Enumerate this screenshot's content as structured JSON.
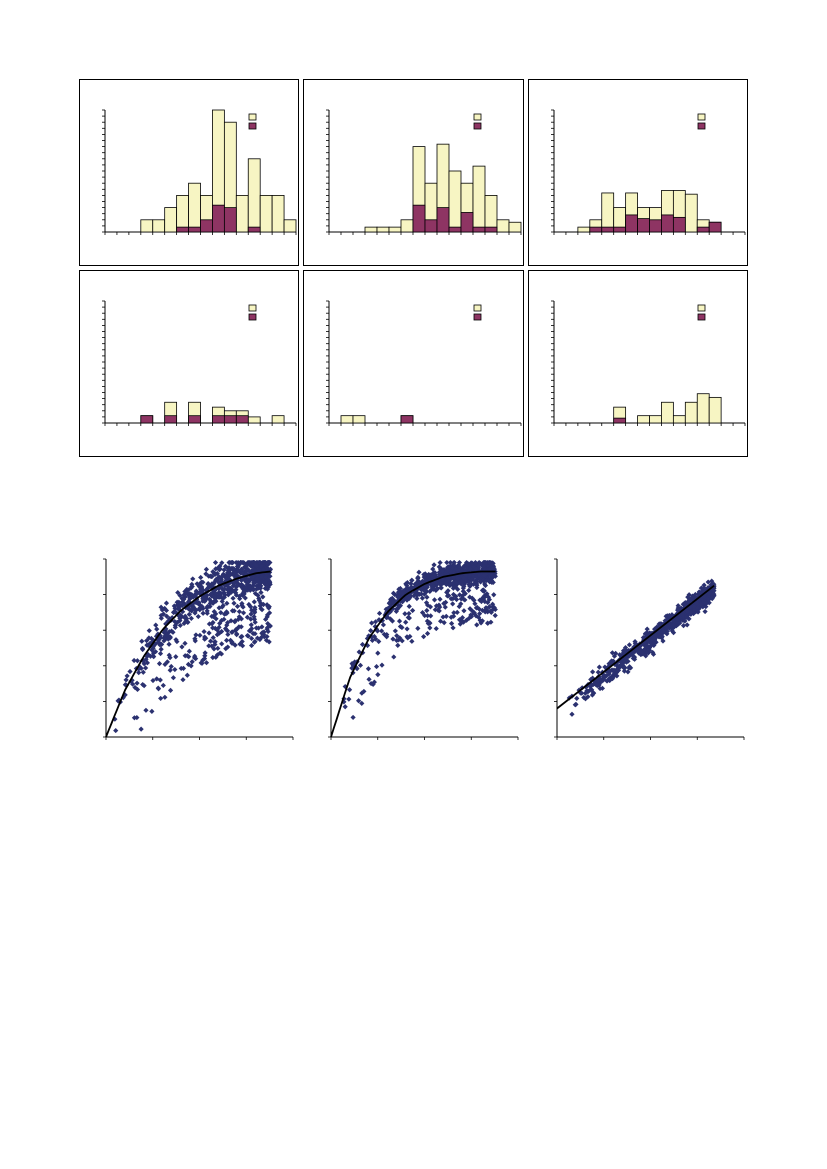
{
  "colors": {
    "light_fill": "#f7f5c3",
    "dark_fill": "#8e3463",
    "scatter_point": "#2b3170",
    "curve": "#000000"
  },
  "chart_data": [
    {
      "type": "bar",
      "stacked": false,
      "n_bins": 16,
      "ylim": [
        0,
        10
      ],
      "legend_placement": "top-right",
      "series": [
        {
          "values": [
            0,
            0,
            0,
            1,
            1,
            2,
            3,
            4,
            3,
            10,
            9,
            3,
            6,
            3,
            3,
            1
          ]
        },
        {
          "values": [
            0,
            0,
            0,
            0,
            0,
            0,
            0.4,
            0.4,
            1,
            2.2,
            2,
            0,
            0.4,
            0,
            0,
            0
          ]
        }
      ]
    },
    {
      "type": "bar",
      "stacked": false,
      "n_bins": 16,
      "ylim": [
        0,
        10
      ],
      "legend_placement": "top-right",
      "series": [
        {
          "values": [
            0,
            0,
            0,
            0.4,
            0.4,
            0.4,
            1,
            7,
            4,
            7.2,
            5,
            4,
            5.4,
            3,
            1,
            0.8
          ]
        },
        {
          "values": [
            0,
            0,
            0,
            0,
            0,
            0,
            0,
            2.2,
            1,
            2,
            0.4,
            1.6,
            0.4,
            0.4,
            0,
            0
          ]
        }
      ]
    },
    {
      "type": "bar",
      "stacked": false,
      "n_bins": 16,
      "ylim": [
        0,
        10
      ],
      "legend_placement": "top-right",
      "series": [
        {
          "values": [
            0,
            0,
            0.4,
            1,
            3.2,
            2,
            3.2,
            2,
            2,
            3.4,
            3.4,
            3.1,
            1,
            0.8,
            0,
            0
          ]
        },
        {
          "values": [
            0,
            0,
            0,
            0.4,
            0.4,
            0.4,
            1.4,
            1.1,
            1,
            1.4,
            1.2,
            0,
            0.4,
            0.8,
            0,
            0
          ]
        }
      ]
    },
    {
      "type": "bar",
      "stacked": false,
      "n_bins": 16,
      "ylim": [
        0,
        10
      ],
      "legend_placement": "top-right",
      "series": [
        {
          "values": [
            0,
            0,
            0,
            0.6,
            0,
            1.7,
            0,
            1.7,
            0,
            1.3,
            1,
            1,
            0.5,
            0,
            0.6,
            0
          ]
        },
        {
          "values": [
            0,
            0,
            0,
            0.6,
            0,
            0.6,
            0,
            0.6,
            0,
            0.6,
            0.6,
            0.6,
            0,
            0,
            0,
            0
          ]
        }
      ]
    },
    {
      "type": "bar",
      "stacked": false,
      "n_bins": 16,
      "ylim": [
        0,
        10
      ],
      "legend_placement": "top-right",
      "series": [
        {
          "values": [
            0,
            0.6,
            0.6,
            0,
            0,
            0,
            0.6,
            0,
            0,
            0,
            0,
            0,
            0,
            0,
            0,
            0
          ]
        },
        {
          "values": [
            0,
            0,
            0,
            0,
            0,
            0,
            0.6,
            0,
            0,
            0,
            0,
            0,
            0,
            0,
            0,
            0
          ]
        }
      ]
    },
    {
      "type": "bar",
      "stacked": false,
      "n_bins": 16,
      "ylim": [
        0,
        10
      ],
      "legend_placement": "top-right",
      "series": [
        {
          "values": [
            0,
            0,
            0,
            0,
            0,
            1.3,
            0,
            0.6,
            0.6,
            1.7,
            0.6,
            1.7,
            2.4,
            2.1,
            0,
            0
          ]
        },
        {
          "values": [
            0,
            0,
            0,
            0,
            0,
            0.4,
            0,
            0,
            0,
            0,
            0,
            0,
            0,
            0,
            0,
            0
          ]
        }
      ]
    },
    {
      "type": "scatter",
      "xlim": [
        0,
        1
      ],
      "ylim": [
        0,
        1
      ],
      "grid": false,
      "fit": "saturating",
      "fit_x": [
        0,
        0.1,
        0.2,
        0.3,
        0.4,
        0.5,
        0.6,
        0.7,
        0.8,
        0.88
      ],
      "fit_y": [
        0,
        0.26,
        0.45,
        0.6,
        0.71,
        0.79,
        0.85,
        0.89,
        0.92,
        0.93
      ],
      "point_count": 900
    },
    {
      "type": "scatter",
      "xlim": [
        0,
        1
      ],
      "ylim": [
        0,
        1
      ],
      "grid": false,
      "fit": "saturating",
      "fit_x": [
        0,
        0.1,
        0.2,
        0.3,
        0.4,
        0.5,
        0.6,
        0.7,
        0.8,
        0.88
      ],
      "fit_y": [
        0,
        0.33,
        0.55,
        0.7,
        0.8,
        0.86,
        0.9,
        0.92,
        0.93,
        0.93
      ],
      "point_count": 900
    },
    {
      "type": "scatter",
      "xlim": [
        0,
        1
      ],
      "ylim": [
        0,
        1
      ],
      "grid": false,
      "fit": "linear",
      "fit_x": [
        0,
        0.84
      ],
      "fit_y": [
        0.16,
        0.85
      ],
      "point_count": 700
    }
  ]
}
